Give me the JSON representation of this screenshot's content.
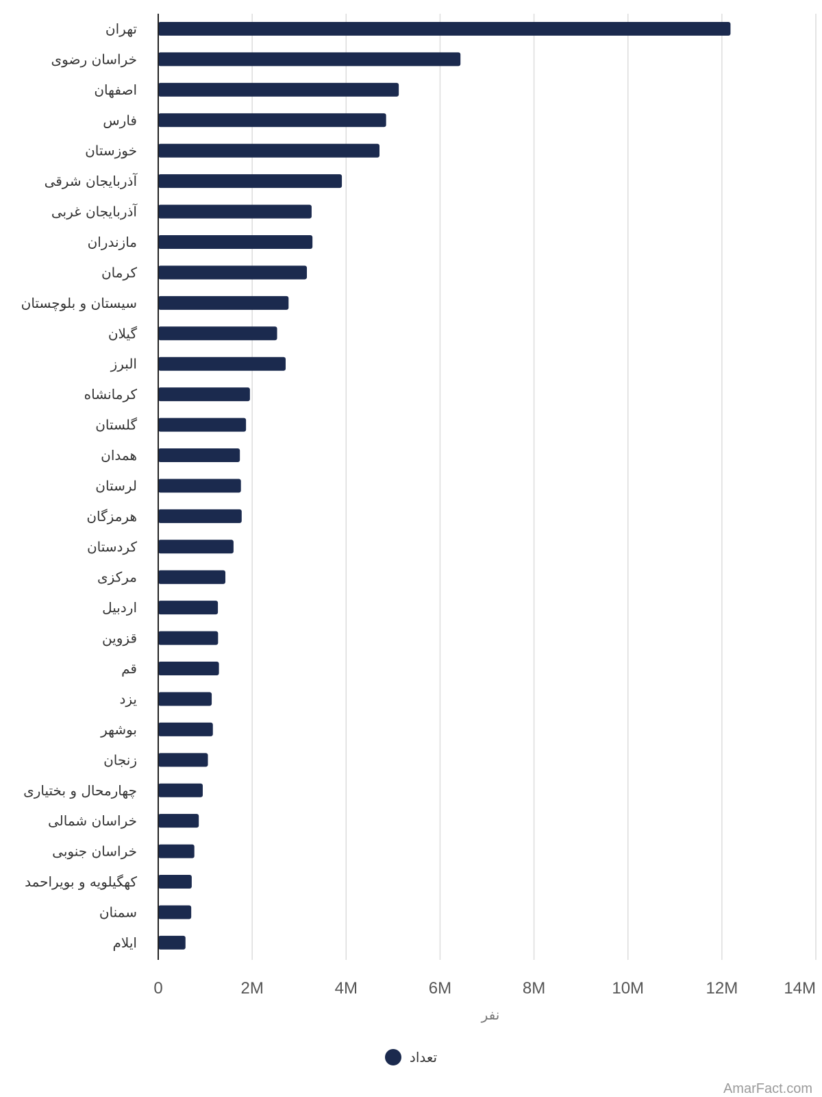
{
  "chart_data": {
    "type": "bar",
    "orientation": "horizontal",
    "categories": [
      "تهران",
      "خراسان رضوی",
      "اصفهان",
      "فارس",
      "خوزستان",
      "آذربایجان شرقی",
      "آذربایجان غربی",
      "مازندران",
      "کرمان",
      "سیستان و بلوچستان",
      "گیلان",
      "البرز",
      "کرمانشاه",
      "گلستان",
      "همدان",
      "لرستان",
      "هرمزگان",
      "کردستان",
      "مرکزی",
      "اردبیل",
      "قزوین",
      "قم",
      "یزد",
      "بوشهر",
      "زنجان",
      "چهارمحال و بختیاری",
      "خراسان شمالی",
      "خراسان جنوبی",
      "کهگیلویه و بویراحمد",
      "سمنان",
      "ایلام"
    ],
    "series": [
      {
        "name": "تعداد",
        "values": [
          12183391,
          6434501,
          5120850,
          4851274,
          4710509,
          3909652,
          3265219,
          3283582,
          3164718,
          2775014,
          2530696,
          2712400,
          1952434,
          1868819,
          1738234,
          1760649,
          1776415,
          1603011,
          1429475,
          1270420,
          1273761,
          1292283,
          1138533,
          1163400,
          1057461,
          947763,
          863092,
          768898,
          713052,
          702360,
          580158
        ],
        "color": "#1b2a4e"
      }
    ],
    "xlabel": "نفر",
    "xlim": [
      0,
      14000000
    ],
    "x_ticks": [
      0,
      2000000,
      4000000,
      6000000,
      8000000,
      10000000,
      12000000,
      14000000
    ],
    "x_tick_labels": [
      "0",
      "2M",
      "4M",
      "6M",
      "8M",
      "10M",
      "12M",
      "14M"
    ],
    "grid": true,
    "legend_position": "bottom"
  },
  "legend": {
    "label": "تعداد",
    "color": "#1b2a4e"
  },
  "watermark": "AmarFact.com"
}
